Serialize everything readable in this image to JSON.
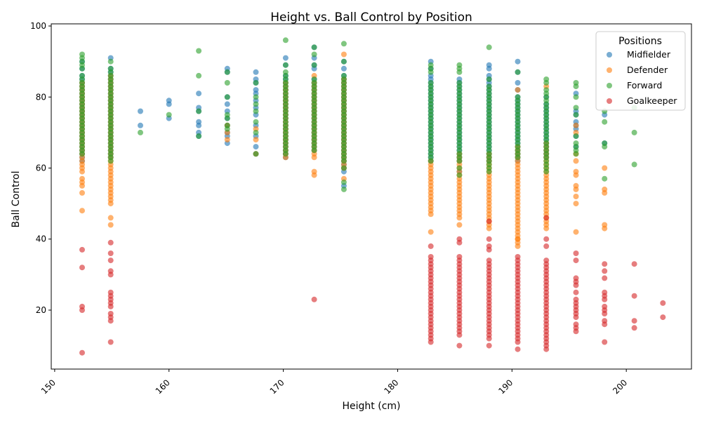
{
  "chart_data": {
    "type": "scatter",
    "title": "Height vs. Ball Control by Position",
    "xlabel": "Height (cm)",
    "ylabel": "Ball Control",
    "xlim": [
      149.7,
      205.7
    ],
    "ylim": [
      3.4,
      100.6
    ],
    "xticks": [
      150,
      160,
      170,
      180,
      190,
      200
    ],
    "yticks": [
      20,
      40,
      60,
      80,
      100
    ],
    "tick_rotation_x": 45,
    "grid": false,
    "legend": {
      "title": "Positions",
      "placement": "top-right"
    },
    "heights_cm": [
      152.4,
      154.9,
      157.5,
      160.0,
      162.6,
      165.1,
      167.6,
      170.2,
      172.7,
      175.3,
      182.9,
      185.4,
      188.0,
      190.5,
      193.0,
      195.6,
      198.1,
      200.7,
      203.2
    ],
    "series": [
      {
        "name": "Midfielder",
        "color": "#1f77b4",
        "bands": [
          {
            "x": 152.4,
            "min": 62,
            "max": 86,
            "extra": [
              88,
              90
            ]
          },
          {
            "x": 154.9,
            "min": 63,
            "max": 88,
            "extra": [
              91
            ]
          },
          {
            "x": 157.5,
            "points": [
              72,
              76
            ]
          },
          {
            "x": 160.0,
            "points": [
              74,
              78,
              79
            ]
          },
          {
            "x": 162.6,
            "points": [
              69,
              70,
              72,
              73,
              76,
              77,
              81
            ]
          },
          {
            "x": 165.1,
            "points": [
              67,
              69,
              70,
              72,
              74,
              76,
              78,
              80,
              87,
              88
            ]
          },
          {
            "x": 167.6,
            "points": [
              64,
              66,
              69,
              72,
              75,
              77,
              79,
              81,
              82,
              84,
              85,
              87
            ]
          },
          {
            "x": 170.2,
            "min": 63,
            "max": 86,
            "extra": [
              89,
              91
            ]
          },
          {
            "x": 172.7,
            "min": 65,
            "max": 85,
            "extra": [
              88,
              89,
              91,
              94
            ]
          },
          {
            "x": 175.3,
            "min": 60,
            "max": 86,
            "extra": [
              55,
              59,
              88,
              90
            ]
          },
          {
            "x": 182.9,
            "min": 62,
            "max": 86,
            "extra": [
              88,
              90
            ]
          },
          {
            "x": 185.4,
            "min": 62,
            "max": 85,
            "extra": [
              59
            ]
          },
          {
            "x": 188.0,
            "min": 62,
            "max": 86,
            "extra": [
              88,
              89
            ]
          },
          {
            "x": 190.5,
            "min": 62,
            "max": 80,
            "extra": [
              82,
              84,
              87,
              90
            ]
          },
          {
            "x": 193.0,
            "min": 63,
            "max": 78,
            "extra": [
              80
            ]
          },
          {
            "x": 195.6,
            "points": [
              66,
              69,
              71,
              72,
              73,
              75,
              76,
              81
            ]
          },
          {
            "x": 198.1,
            "points": [
              67,
              75
            ]
          },
          {
            "x": 200.7,
            "points": []
          },
          {
            "x": 203.2,
            "points": []
          }
        ]
      },
      {
        "name": "Defender",
        "color": "#ff7f0e",
        "bands": [
          {
            "x": 152.4,
            "min": 59,
            "max": 84,
            "extra": [
              48,
              53,
              55,
              56,
              57
            ]
          },
          {
            "x": 154.9,
            "min": 50,
            "max": 86,
            "extra": [
              44,
              46
            ]
          },
          {
            "x": 157.5,
            "points": []
          },
          {
            "x": 160.0,
            "points": []
          },
          {
            "x": 162.6,
            "points": []
          },
          {
            "x": 165.1,
            "points": [
              68,
              70,
              72
            ]
          },
          {
            "x": 167.6,
            "points": [
              64,
              68,
              71
            ]
          },
          {
            "x": 170.2,
            "min": 63,
            "max": 84
          },
          {
            "x": 172.7,
            "min": 63,
            "max": 84,
            "extra": [
              58,
              59,
              86
            ]
          },
          {
            "x": 175.3,
            "min": 60,
            "max": 85,
            "extra": [
              57,
              92
            ]
          },
          {
            "x": 182.9,
            "min": 47,
            "max": 62,
            "extra": [
              42
            ]
          },
          {
            "x": 185.4,
            "min": 46,
            "max": 64,
            "extra": [
              44
            ]
          },
          {
            "x": 188.0,
            "min": 43,
            "max": 64
          },
          {
            "x": 190.5,
            "min": 38,
            "max": 66,
            "extra": [
              40,
              82
            ]
          },
          {
            "x": 193.0,
            "min": 43,
            "max": 67,
            "extra": [
              83
            ]
          },
          {
            "x": 195.6,
            "points": [
              42,
              50,
              52,
              54,
              55,
              58,
              59,
              62,
              64,
              70,
              72
            ]
          },
          {
            "x": 198.1,
            "points": [
              43,
              44,
              53,
              54,
              60
            ]
          },
          {
            "x": 200.7,
            "points": []
          },
          {
            "x": 203.2,
            "points": []
          }
        ]
      },
      {
        "name": "Forward",
        "color": "#2ca02c",
        "bands": [
          {
            "x": 152.4,
            "min": 64,
            "max": 86,
            "extra": [
              88,
              89,
              90,
              91,
              92
            ]
          },
          {
            "x": 154.9,
            "min": 62,
            "max": 88,
            "extra": [
              90
            ]
          },
          {
            "x": 157.5,
            "points": [
              70
            ]
          },
          {
            "x": 160.0,
            "points": [
              75
            ]
          },
          {
            "x": 162.6,
            "points": [
              69,
              76,
              86,
              93
            ]
          },
          {
            "x": 165.1,
            "points": [
              71,
              72,
              74,
              75,
              80,
              84,
              87
            ]
          },
          {
            "x": 167.6,
            "points": [
              64,
              70,
              73,
              76,
              78,
              80,
              84
            ]
          },
          {
            "x": 170.2,
            "min": 64,
            "max": 87,
            "extra": [
              89,
              96
            ]
          },
          {
            "x": 172.7,
            "min": 65,
            "max": 85,
            "extra": [
              89,
              92,
              94
            ]
          },
          {
            "x": 175.3,
            "min": 62,
            "max": 86,
            "extra": [
              54,
              56,
              60,
              90,
              95
            ]
          },
          {
            "x": 182.9,
            "min": 62,
            "max": 84,
            "extra": [
              87,
              88,
              89
            ]
          },
          {
            "x": 185.4,
            "min": 62,
            "max": 84,
            "extra": [
              58,
              60,
              87,
              88,
              89
            ]
          },
          {
            "x": 188.0,
            "min": 59,
            "max": 83,
            "extra": [
              85,
              94
            ]
          },
          {
            "x": 190.5,
            "min": 63,
            "max": 80,
            "extra": [
              87
            ]
          },
          {
            "x": 193.0,
            "min": 59,
            "max": 82,
            "extra": [
              84,
              85
            ]
          },
          {
            "x": 195.6,
            "points": [
              64,
              65,
              66,
              67,
              69,
              75,
              77,
              80,
              83,
              84
            ]
          },
          {
            "x": 198.1,
            "points": [
              57,
              66,
              67,
              73,
              76
            ]
          },
          {
            "x": 200.7,
            "points": [
              61,
              70,
              77
            ]
          },
          {
            "x": 203.2,
            "points": []
          }
        ]
      },
      {
        "name": "Goalkeeper",
        "color": "#d62728",
        "bands": [
          {
            "x": 152.4,
            "points": [
              8,
              20,
              21,
              32,
              37
            ]
          },
          {
            "x": 154.9,
            "points": [
              11,
              17,
              18,
              19,
              21,
              22,
              23,
              24,
              25,
              30,
              31,
              34,
              36,
              39
            ]
          },
          {
            "x": 157.5,
            "points": []
          },
          {
            "x": 160.0,
            "points": []
          },
          {
            "x": 162.6,
            "points": []
          },
          {
            "x": 165.1,
            "points": []
          },
          {
            "x": 167.6,
            "points": []
          },
          {
            "x": 170.2,
            "points": []
          },
          {
            "x": 172.7,
            "points": [
              23
            ]
          },
          {
            "x": 175.3,
            "points": []
          },
          {
            "x": 182.9,
            "min": 11,
            "max": 35,
            "extra": [
              38
            ]
          },
          {
            "x": 185.4,
            "min": 13,
            "max": 35,
            "extra": [
              10,
              39,
              40
            ]
          },
          {
            "x": 188.0,
            "min": 12,
            "max": 34,
            "extra": [
              10,
              37,
              38,
              40,
              45
            ]
          },
          {
            "x": 190.5,
            "min": 11,
            "max": 35,
            "extra": [
              9
            ]
          },
          {
            "x": 193.0,
            "min": 9,
            "max": 34,
            "extra": [
              38,
              40,
              46
            ]
          },
          {
            "x": 195.6,
            "points": [
              14,
              15,
              16,
              18,
              19,
              20,
              21,
              22,
              23,
              25,
              27,
              28,
              29,
              34,
              36
            ]
          },
          {
            "x": 198.1,
            "points": [
              11,
              16,
              17,
              19,
              20,
              21,
              23,
              24,
              25,
              29,
              31,
              33
            ]
          },
          {
            "x": 200.7,
            "points": [
              15,
              17,
              24,
              33
            ]
          },
          {
            "x": 203.2,
            "points": [
              18,
              22
            ]
          }
        ]
      }
    ]
  }
}
